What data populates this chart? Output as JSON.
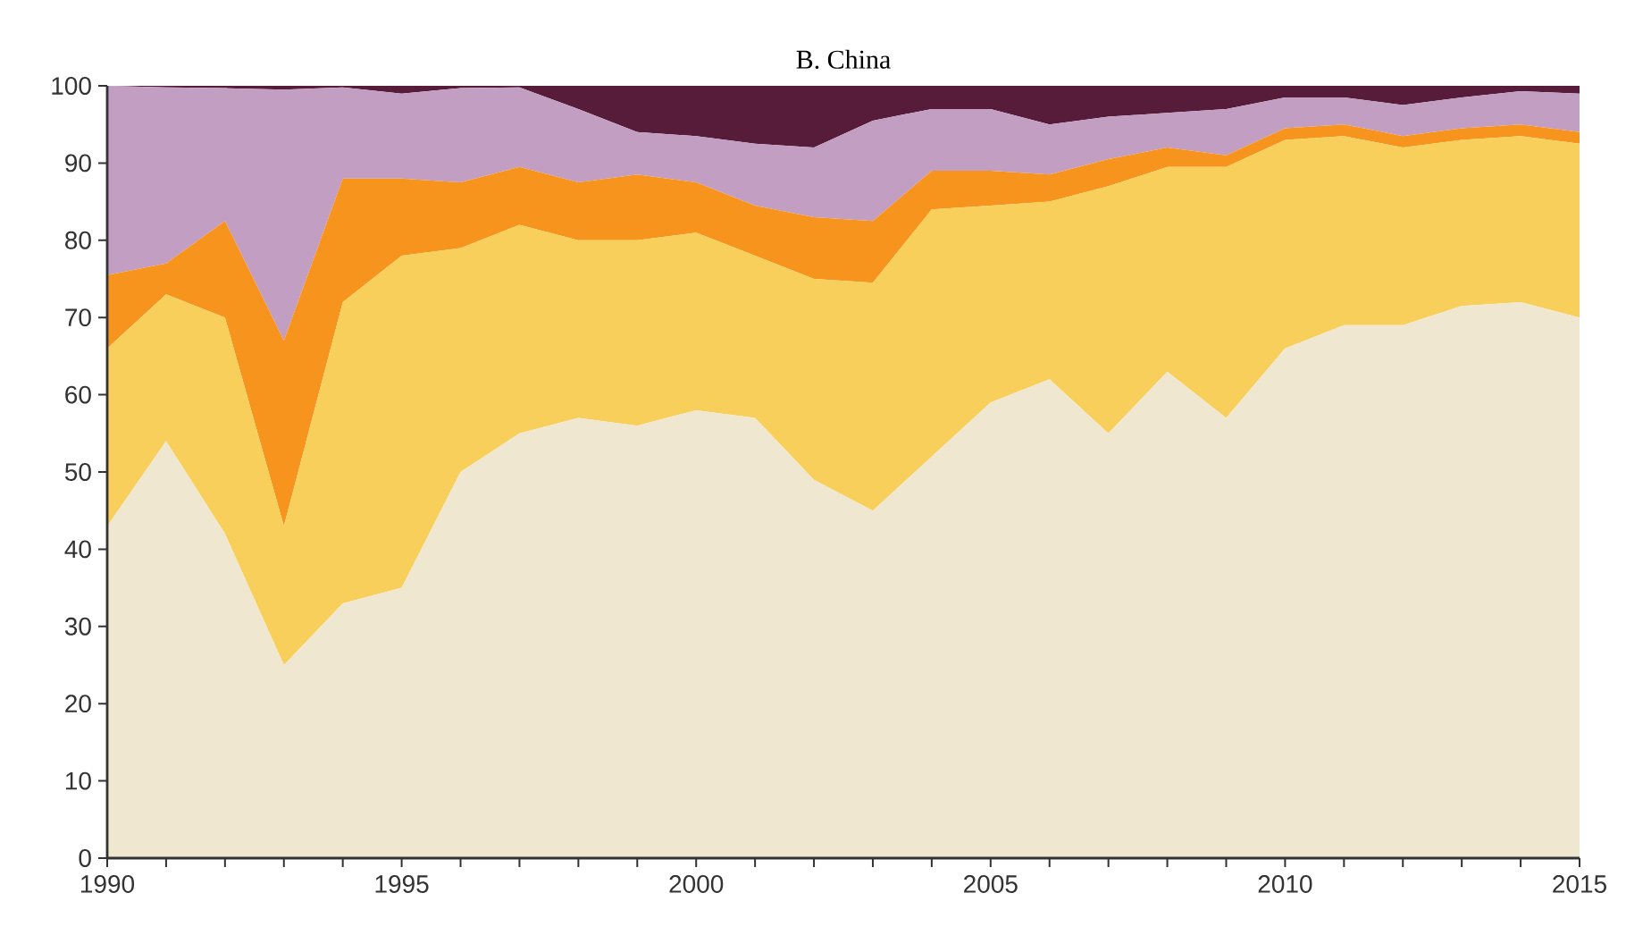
{
  "chart_data": {
    "type": "area",
    "title": "B. China",
    "stacked": true,
    "x": [
      1990,
      1991,
      1992,
      1993,
      1994,
      1995,
      1996,
      1997,
      1998,
      1999,
      2000,
      2001,
      2002,
      2003,
      2004,
      2005,
      2006,
      2007,
      2008,
      2009,
      2010,
      2011,
      2012,
      2013,
      2014,
      2015
    ],
    "series": [
      {
        "color": "#efe7cf",
        "values": [
          43,
          54,
          42,
          25,
          33,
          35,
          50,
          55,
          57,
          56,
          58,
          57,
          49,
          45,
          52,
          59,
          62,
          55,
          63,
          57,
          66,
          69,
          69,
          71.5,
          72,
          70
        ]
      },
      {
        "color": "#f7cf5a",
        "values": [
          23,
          19,
          28,
          18,
          39,
          43,
          29,
          27,
          23,
          24,
          23,
          21,
          26,
          29.5,
          32,
          25.5,
          23,
          32,
          26.5,
          32.5,
          27,
          24.5,
          23,
          21.5,
          21.5,
          22.5
        ]
      },
      {
        "color": "#f7941d",
        "values": [
          9.5,
          4,
          12.5,
          24,
          16,
          10,
          8.5,
          7.5,
          7.5,
          8.5,
          6.5,
          6.5,
          8,
          8,
          5,
          4.5,
          3.5,
          3.5,
          2.5,
          1.5,
          1.5,
          1.5,
          1.5,
          1.5,
          1.5,
          1.5
        ]
      },
      {
        "color": "#c39ec3",
        "values": [
          24.5,
          22.8,
          17.2,
          32.5,
          11.8,
          11,
          12.2,
          10.3,
          9.5,
          5.5,
          6,
          8,
          9,
          13,
          8,
          8,
          6.5,
          5.5,
          4.5,
          6,
          4,
          3.5,
          4,
          4,
          4.3,
          5
        ]
      },
      {
        "color": "#561c3a",
        "values": [
          0,
          0.2,
          0.3,
          0.5,
          0.2,
          1,
          0.3,
          0.2,
          3,
          6,
          6.5,
          7.5,
          8,
          4.5,
          3,
          3,
          5,
          4,
          3.5,
          3,
          1.5,
          1.5,
          2.5,
          1.5,
          0.7,
          1
        ]
      }
    ],
    "xlim": [
      1990,
      2015
    ],
    "xticks": [
      1990,
      {
        "value": 1991,
        "label": null
      },
      {
        "value": 1992,
        "label": null
      },
      {
        "value": 1993,
        "label": null
      },
      {
        "value": 1994,
        "label": null
      },
      1995,
      {
        "value": 1996,
        "label": null
      },
      {
        "value": 1997,
        "label": null
      },
      {
        "value": 1998,
        "label": null
      },
      {
        "value": 1999,
        "label": null
      },
      2000,
      {
        "value": 2001,
        "label": null
      },
      {
        "value": 2002,
        "label": null
      },
      {
        "value": 2003,
        "label": null
      },
      {
        "value": 2004,
        "label": null
      },
      2005,
      {
        "value": 2006,
        "label": null
      },
      {
        "value": 2007,
        "label": null
      },
      {
        "value": 2008,
        "label": null
      },
      {
        "value": 2009,
        "label": null
      },
      2010,
      {
        "value": 2011,
        "label": null
      },
      {
        "value": 2012,
        "label": null
      },
      {
        "value": 2013,
        "label": null
      },
      {
        "value": 2014,
        "label": null
      },
      2015
    ],
    "ylim": [
      0,
      100
    ],
    "yticks": [
      0,
      10,
      20,
      30,
      40,
      50,
      60,
      70,
      80,
      90,
      100
    ],
    "grid": false
  }
}
